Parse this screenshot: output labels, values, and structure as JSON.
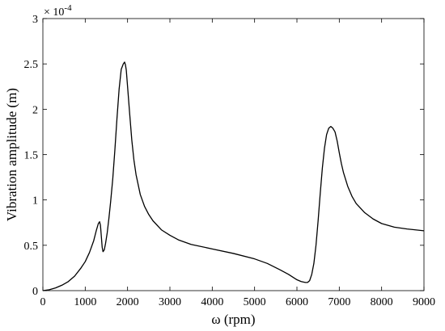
{
  "chart_data": {
    "type": "line",
    "title": "",
    "xlabel": "ω (rpm)",
    "ylabel": "Vibration amplitude (m)",
    "y_exponent_label": {
      "base": "× 10",
      "exponent": "-4"
    },
    "xlim": [
      0,
      9000
    ],
    "ylim": [
      0,
      3
    ],
    "xticks": [
      0,
      1000,
      2000,
      3000,
      4000,
      5000,
      6000,
      7000,
      8000,
      9000
    ],
    "yticks": [
      0,
      0.5,
      1,
      1.5,
      2,
      2.5,
      3
    ],
    "ytick_labels": [
      "0",
      "0.5",
      "1",
      "1.5",
      "2",
      "2.5",
      "3"
    ],
    "grid": false,
    "box": true,
    "line_color": "#000000",
    "series": [
      {
        "x": [
          0,
          150,
          300,
          450,
          600,
          750,
          900,
          1000,
          1100,
          1200,
          1260,
          1310,
          1340,
          1360,
          1380,
          1400,
          1420,
          1450,
          1480,
          1520,
          1560,
          1600,
          1650,
          1700,
          1750,
          1800,
          1850,
          1900,
          1930,
          1950,
          1970,
          2000,
          2050,
          2100,
          2150,
          2200,
          2300,
          2400,
          2500,
          2600,
          2800,
          3000,
          3200,
          3500,
          4000,
          4500,
          5000,
          5300,
          5600,
          5800,
          6000,
          6100,
          6200,
          6250,
          6300,
          6350,
          6400,
          6450,
          6500,
          6550,
          6600,
          6650,
          6700,
          6750,
          6800,
          6850,
          6900,
          6950,
          7000,
          7050,
          7100,
          7200,
          7300,
          7400,
          7600,
          7800,
          8000,
          8300,
          8600,
          9000
        ],
        "y": [
          0,
          0.01,
          0.03,
          0.06,
          0.1,
          0.16,
          0.25,
          0.32,
          0.42,
          0.55,
          0.66,
          0.74,
          0.76,
          0.72,
          0.6,
          0.48,
          0.43,
          0.45,
          0.52,
          0.64,
          0.8,
          0.98,
          1.23,
          1.55,
          1.9,
          2.22,
          2.44,
          2.5,
          2.52,
          2.49,
          2.43,
          2.25,
          1.95,
          1.66,
          1.44,
          1.28,
          1.06,
          0.93,
          0.84,
          0.77,
          0.67,
          0.61,
          0.56,
          0.51,
          0.46,
          0.41,
          0.35,
          0.3,
          0.23,
          0.18,
          0.12,
          0.1,
          0.09,
          0.09,
          0.11,
          0.18,
          0.3,
          0.5,
          0.77,
          1.07,
          1.35,
          1.57,
          1.72,
          1.79,
          1.81,
          1.79,
          1.75,
          1.65,
          1.52,
          1.4,
          1.3,
          1.15,
          1.04,
          0.96,
          0.86,
          0.79,
          0.74,
          0.7,
          0.68,
          0.66
        ]
      }
    ]
  }
}
